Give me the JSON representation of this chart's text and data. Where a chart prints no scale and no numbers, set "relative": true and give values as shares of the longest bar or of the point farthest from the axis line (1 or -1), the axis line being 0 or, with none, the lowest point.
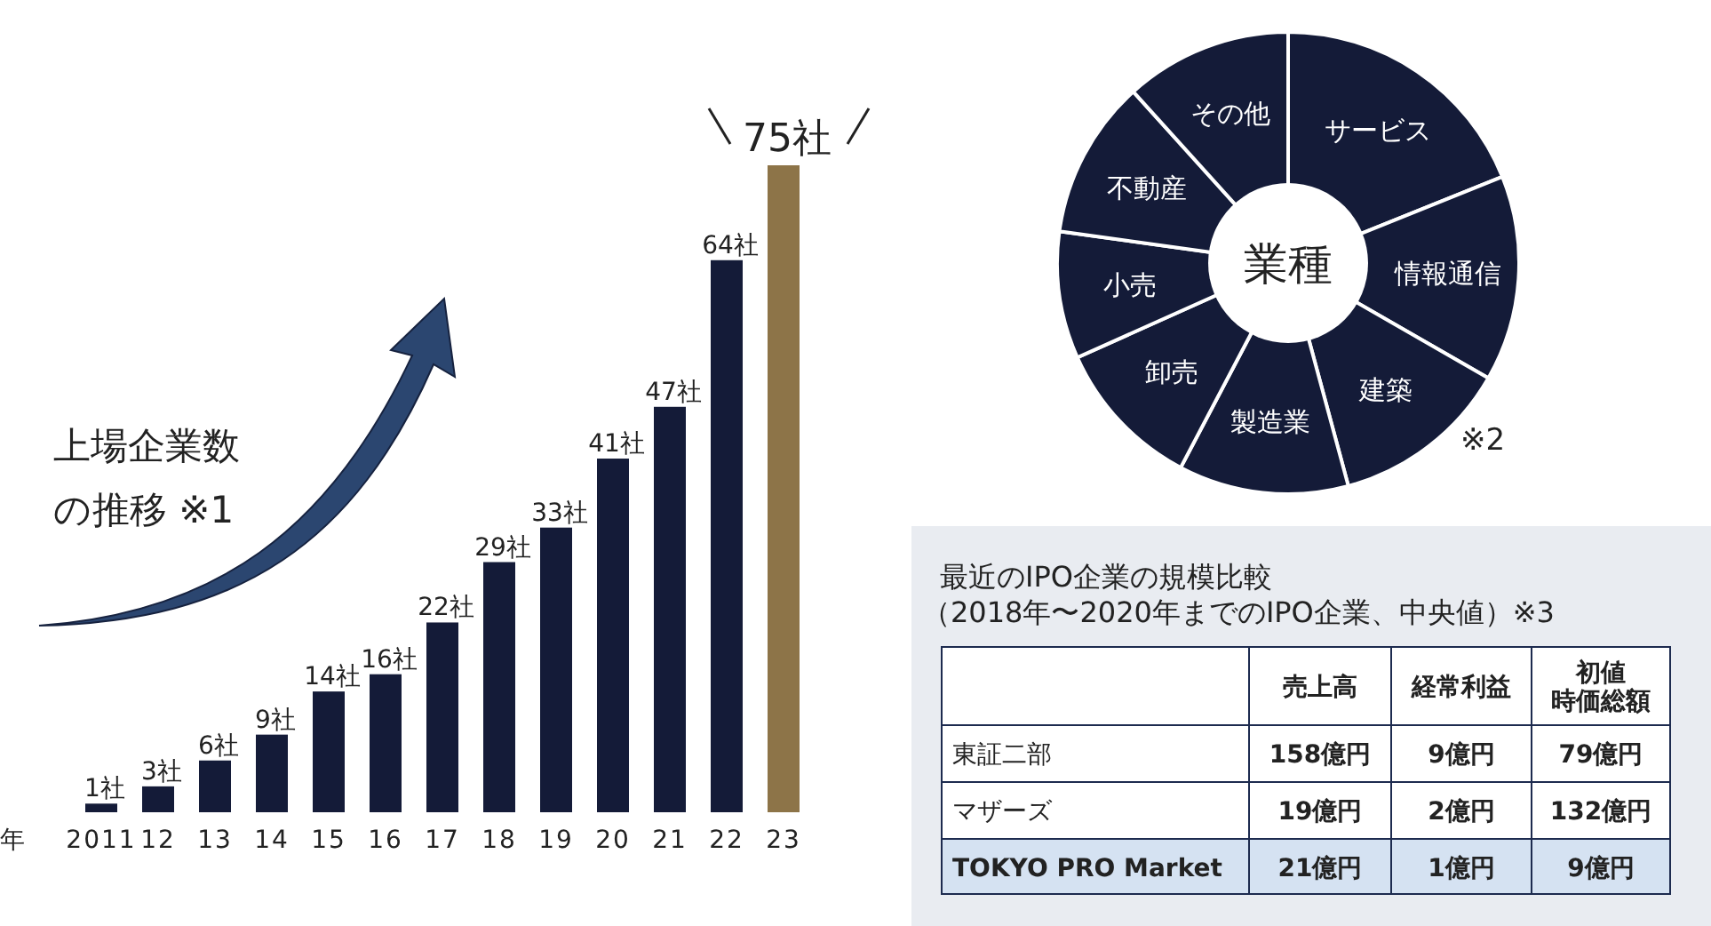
{
  "chart_data": [
    {
      "type": "bar",
      "title": "上場企業数の推移 ※1",
      "xlabel": "年",
      "categories": [
        "2011",
        "12",
        "13",
        "14",
        "15",
        "16",
        "17",
        "18",
        "19",
        "20",
        "21",
        "22",
        "23"
      ],
      "values": [
        1,
        3,
        6,
        9,
        14,
        16,
        22,
        29,
        33,
        41,
        47,
        64,
        75
      ],
      "value_labels": [
        "1社",
        "3社",
        "6社",
        "9社",
        "14社",
        "16社",
        "22社",
        "29社",
        "33社",
        "41社",
        "47社",
        "64社",
        "75社"
      ],
      "colors": [
        "#141b38",
        "#141b38",
        "#141b38",
        "#141b38",
        "#141b38",
        "#141b38",
        "#141b38",
        "#141b38",
        "#141b38",
        "#141b38",
        "#141b38",
        "#141b38",
        "#8d7448"
      ]
    },
    {
      "type": "donut",
      "title": "業種",
      "relative": true,
      "categories": [
        "サービス",
        "情報通信",
        "建築",
        "製造業",
        "卸売",
        "小売",
        "不動産",
        "その他"
      ],
      "values": [
        18.9,
        14.4,
        12.5,
        11.9,
        10.6,
        8.9,
        11.1,
        11.7
      ],
      "colors": [
        "#141b38",
        "#141b38",
        "#141b38",
        "#141b38",
        "#141b38",
        "#141b38",
        "#141b38",
        "#141b38"
      ],
      "annotations": [
        "※2"
      ]
    },
    {
      "type": "other",
      "title": "最近のIPO企業の規模比較",
      "subtitle": "（2018年〜2020年までのIPO企業、中央値）※3",
      "categories": [
        "売上高",
        "経常利益",
        "初値時価総額"
      ],
      "y_categories": [
        "東証二部",
        "マザーズ",
        "TOKYO PRO Market"
      ],
      "cell_labels": [
        [
          "158億円",
          "9億円",
          "79億円"
        ],
        [
          "19億円",
          "2億円",
          "132億円"
        ],
        [
          "21億円",
          "1億円",
          "9億円"
        ]
      ]
    }
  ]
}
